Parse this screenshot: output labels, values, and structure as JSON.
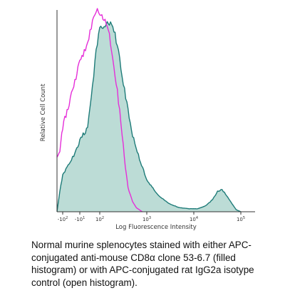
{
  "chart_data": {
    "type": "area",
    "xlabel": "Log Fluorescence Intensity",
    "ylabel": "Relative Cell Count",
    "x_scale": "biexponential",
    "xlim": [
      -200,
      200000
    ],
    "ylim": [
      0,
      100
    ],
    "x_ticks": [
      {
        "value": -100,
        "label_base": "-10",
        "label_exp": "2"
      },
      {
        "value": -10,
        "label_base": "-10",
        "label_exp": "1"
      },
      {
        "value": 100,
        "label_base": "10",
        "label_exp": "2"
      },
      {
        "value": 1000,
        "label_base": "10",
        "label_exp": "3"
      },
      {
        "value": 10000,
        "label_base": "10",
        "label_exp": "4"
      },
      {
        "value": 100000,
        "label_base": "10",
        "label_exp": "5"
      }
    ],
    "series": [
      {
        "style": "filled",
        "color": "#1e7b78",
        "fill": "#bcdcd6",
        "points": [
          [
            -200,
            0
          ],
          [
            -150,
            10
          ],
          [
            -100,
            18
          ],
          [
            -60,
            25
          ],
          [
            -30,
            30
          ],
          [
            -10,
            35
          ],
          [
            0,
            42
          ],
          [
            20,
            52
          ],
          [
            40,
            62
          ],
          [
            60,
            74
          ],
          [
            80,
            84
          ],
          [
            100,
            90
          ],
          [
            130,
            93
          ],
          [
            160,
            94
          ],
          [
            200,
            90
          ],
          [
            250,
            80
          ],
          [
            300,
            68
          ],
          [
            400,
            50
          ],
          [
            500,
            38
          ],
          [
            700,
            26
          ],
          [
            1000,
            16
          ],
          [
            1500,
            10
          ],
          [
            2000,
            7
          ],
          [
            3000,
            4
          ],
          [
            5000,
            2
          ],
          [
            8000,
            1.5
          ],
          [
            12000,
            1.5
          ],
          [
            18000,
            3
          ],
          [
            25000,
            6
          ],
          [
            32000,
            10
          ],
          [
            40000,
            11
          ],
          [
            50000,
            8
          ],
          [
            65000,
            4
          ],
          [
            80000,
            1
          ],
          [
            100000,
            0
          ]
        ]
      },
      {
        "style": "open",
        "color": "#e52ed8",
        "points": [
          [
            -200,
            27
          ],
          [
            -150,
            30
          ],
          [
            -100,
            42
          ],
          [
            -60,
            56
          ],
          [
            -30,
            66
          ],
          [
            -10,
            75
          ],
          [
            0,
            83
          ],
          [
            20,
            89
          ],
          [
            40,
            95
          ],
          [
            60,
            99
          ],
          [
            80,
            100
          ],
          [
            100,
            98
          ],
          [
            130,
            95
          ],
          [
            160,
            88
          ],
          [
            200,
            72
          ],
          [
            250,
            55
          ],
          [
            300,
            38
          ],
          [
            350,
            22
          ],
          [
            400,
            12
          ],
          [
            500,
            5
          ],
          [
            600,
            2
          ],
          [
            800,
            0
          ]
        ]
      }
    ]
  },
  "caption": "Normal murine splenocytes stained with either APC-conjugated anti-mouse CD8α clone 53-6.7 (filled histogram) or with APC-conjugated rat IgG2a isotype control (open histogram)."
}
